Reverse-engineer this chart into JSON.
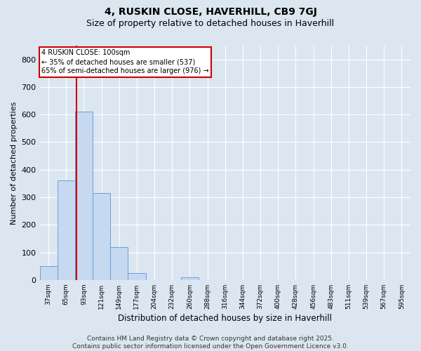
{
  "title": "4, RUSKIN CLOSE, HAVERHILL, CB9 7GJ",
  "subtitle": "Size of property relative to detached houses in Haverhill",
  "xlabel": "Distribution of detached houses by size in Haverhill",
  "ylabel": "Number of detached properties",
  "categories": [
    "37sqm",
    "65sqm",
    "93sqm",
    "121sqm",
    "149sqm",
    "177sqm",
    "204sqm",
    "232sqm",
    "260sqm",
    "288sqm",
    "316sqm",
    "344sqm",
    "372sqm",
    "400sqm",
    "428sqm",
    "456sqm",
    "483sqm",
    "511sqm",
    "539sqm",
    "567sqm",
    "595sqm"
  ],
  "values": [
    50,
    360,
    610,
    315,
    120,
    25,
    0,
    0,
    10,
    0,
    0,
    0,
    0,
    0,
    0,
    0,
    0,
    0,
    0,
    0,
    0
  ],
  "bar_color": "#c6d9f1",
  "bar_edge_color": "#6a9fd8",
  "background_color": "#dce6f1",
  "grid_color": "#ffffff",
  "vline_color": "#cc0000",
  "vline_x": 1.57,
  "annotation_text": "4 RUSKIN CLOSE: 100sqm\n← 35% of detached houses are smaller (537)\n65% of semi-detached houses are larger (976) →",
  "annotation_box_color": "#ffffff",
  "annotation_box_edge": "#cc0000",
  "ylim": [
    0,
    850
  ],
  "yticks": [
    0,
    100,
    200,
    300,
    400,
    500,
    600,
    700,
    800
  ],
  "footer": "Contains HM Land Registry data © Crown copyright and database right 2025.\nContains public sector information licensed under the Open Government Licence v3.0.",
  "title_fontsize": 10,
  "subtitle_fontsize": 9,
  "footer_fontsize": 6.5
}
